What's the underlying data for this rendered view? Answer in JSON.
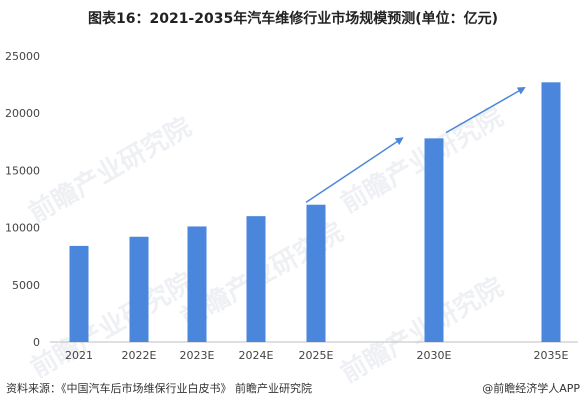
{
  "title": "图表16：2021-2035年汽车维修行业市场规模预测(单位：亿元)",
  "chart_data": {
    "type": "bar",
    "categories": [
      "2021",
      "2022E",
      "2023E",
      "2024E",
      "2025E",
      "2030E",
      "2035E"
    ],
    "values": [
      8400,
      9200,
      10100,
      11000,
      12000,
      17800,
      22700
    ],
    "ylim": [
      0,
      25000
    ],
    "yticks": [
      0,
      5000,
      10000,
      15000,
      20000,
      25000
    ],
    "bar_color": "#4a86dc",
    "arrow_color": "#4a86dc",
    "grid": false,
    "annotations": [
      "growth-arrow-2025E-2030E",
      "growth-arrow-2030E-2035E"
    ]
  },
  "watermark": "前瞻产业研究院",
  "footer": {
    "source": "资料来源：《中国汽车后市场维保行业白皮书》 前瞻产业研究院",
    "credit": "@前瞻经济学人APP"
  }
}
